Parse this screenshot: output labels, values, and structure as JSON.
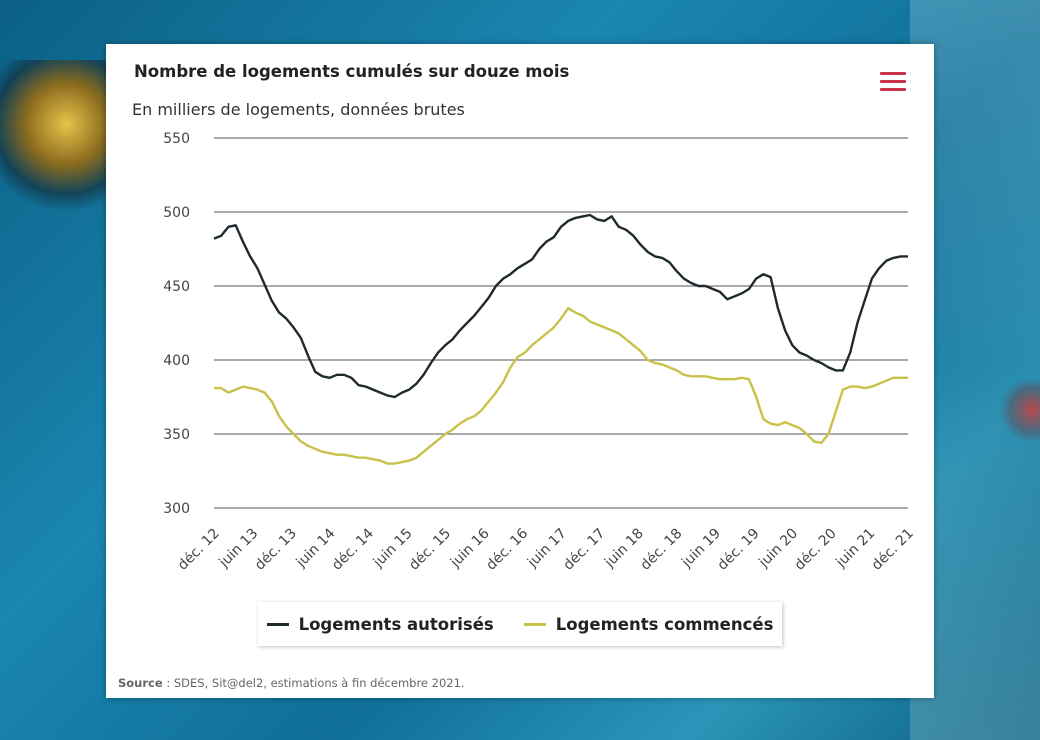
{
  "title": "Nombre de logements cumulés sur douze mois",
  "subtitle": "En milliers de logements, données brutes",
  "menu_icon": "hamburger-menu-icon",
  "source_label": "Source",
  "source_text": " : SDES, Sit@del2, estimations à fin décembre 2021.",
  "chart_data": {
    "type": "line",
    "title": "Nombre de logements cumulés sur douze mois",
    "ylabel": "",
    "xlabel": "",
    "ylim": [
      300,
      550
    ],
    "yticks": [
      "550",
      "500",
      "450",
      "400",
      "350",
      "300"
    ],
    "xticks": [
      "déc. 12",
      "juin 13",
      "déc. 13",
      "juin 14",
      "déc. 14",
      "juin 15",
      "déc. 15",
      "juin 16",
      "déc. 16",
      "juin 17",
      "déc. 17",
      "juin 18",
      "déc. 18",
      "juin 19",
      "déc. 19",
      "juin 20",
      "déc. 20",
      "juin 21",
      "déc. 21"
    ],
    "grid": true,
    "legend": "bottom",
    "series": [
      {
        "name": "Logements autorisés",
        "color": "#1e2a2e",
        "values": [
          482,
          484,
          490,
          491,
          480,
          470,
          462,
          451,
          440,
          432,
          428,
          422,
          415,
          403,
          392,
          389,
          388,
          390,
          390,
          388,
          383,
          382,
          380,
          378,
          376,
          375,
          378,
          380,
          384,
          390,
          398,
          405,
          410,
          414,
          420,
          425,
          430,
          436,
          442,
          450,
          455,
          458,
          462,
          465,
          468,
          475,
          480,
          483,
          490,
          494,
          496,
          497,
          498,
          495,
          494,
          497,
          490,
          488,
          484,
          478,
          473,
          470,
          469,
          466,
          460,
          455,
          452,
          450,
          450,
          448,
          446,
          441,
          443,
          445,
          448,
          455,
          458,
          456,
          435,
          420,
          410,
          405,
          403,
          400,
          398,
          395,
          393,
          393,
          405,
          425,
          440,
          455,
          462,
          467,
          469,
          470,
          470
        ]
      },
      {
        "name": "Logements commencés",
        "color": "#c9c24a",
        "values": [
          381,
          381,
          378,
          380,
          382,
          381,
          380,
          378,
          372,
          362,
          355,
          350,
          345,
          342,
          340,
          338,
          337,
          336,
          336,
          335,
          334,
          334,
          333,
          332,
          330,
          330,
          331,
          332,
          334,
          338,
          342,
          346,
          350,
          353,
          357,
          360,
          362,
          366,
          372,
          378,
          385,
          395,
          402,
          405,
          410,
          414,
          418,
          422,
          428,
          435,
          432,
          430,
          426,
          424,
          422,
          420,
          418,
          414,
          410,
          406,
          400,
          398,
          397,
          395,
          393,
          390,
          389,
          389,
          389,
          388,
          387,
          387,
          387,
          388,
          387,
          375,
          360,
          357,
          356,
          358,
          356,
          354,
          350,
          345,
          344,
          350,
          365,
          380,
          382,
          382,
          381,
          382,
          384,
          386,
          388,
          388,
          388
        ]
      }
    ]
  },
  "legend_items": [
    "Logements autorisés",
    "Logements commencés"
  ]
}
